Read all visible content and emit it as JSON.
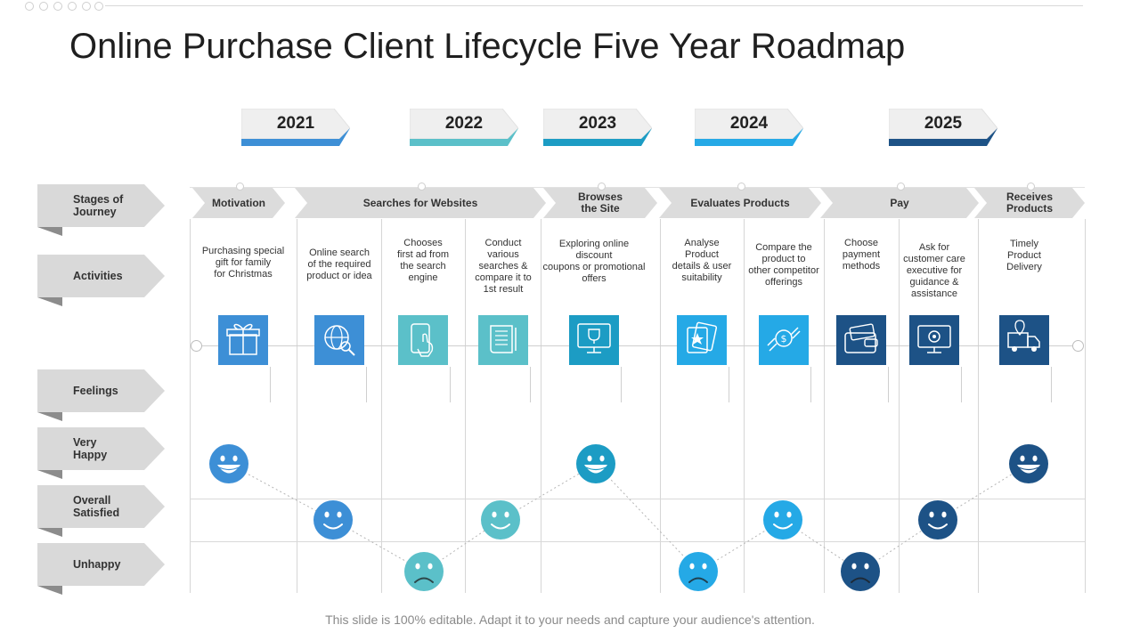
{
  "title": "Online Purchase Client Lifecycle Five Year Roadmap",
  "footer": "This slide is 100% editable. Adapt it to your needs and capture your audience's attention.",
  "years": [
    {
      "label": "2021",
      "color": "#3d8fd6"
    },
    {
      "label": "2022",
      "color": "#5bc0c9"
    },
    {
      "label": "2023",
      "color": "#1c9cc4"
    },
    {
      "label": "2024",
      "color": "#25a9e6"
    },
    {
      "label": "2025",
      "color": "#1d5286"
    }
  ],
  "sidebar": [
    {
      "label": "Stages of\nJourney"
    },
    {
      "label": "Activities"
    },
    {
      "label": "Feelings"
    },
    {
      "label": "Very\nHappy"
    },
    {
      "label": "Overall\nSatisfied"
    },
    {
      "label": "Unhappy"
    }
  ],
  "stages": [
    {
      "label": "Motivation"
    },
    {
      "label": "Searches for Websites"
    },
    {
      "label": "Browses\nthe Site"
    },
    {
      "label": "Evaluates Products"
    },
    {
      "label": "Pay"
    },
    {
      "label": "Receives\nProducts"
    }
  ],
  "activities": [
    {
      "text": "Purchasing special\ngift for family\nfor Christmas",
      "icon": "gift-icon",
      "color": "#3d8fd6",
      "feeling": "very-happy"
    },
    {
      "text": "Online search\nof the required\nproduct or idea",
      "icon": "globe-search-icon",
      "color": "#3d8fd6",
      "feeling": "satisfied"
    },
    {
      "text": "Chooses\nfirst ad from\nthe search\nengine",
      "icon": "phone-tap-icon",
      "color": "#5bc0c9",
      "feeling": "unhappy"
    },
    {
      "text": "Conduct\nvarious\nsearches &\ncompare it to\n1st result",
      "icon": "scroll-icon",
      "color": "#5bc0c9",
      "feeling": "satisfied"
    },
    {
      "text": "Exploring online\ndiscount\ncoupons or promotional\noffers",
      "icon": "trophy-screen-icon",
      "color": "#1c9cc4",
      "feeling": "very-happy"
    },
    {
      "text": "Analyse\nProduct\ndetails & user\nsuitability",
      "icon": "cards-star-icon",
      "color": "#25a9e6",
      "feeling": "unhappy"
    },
    {
      "text": "Compare the\nproduct to\nother competitor\nofferings",
      "icon": "handshake-coin-icon",
      "color": "#25a9e6",
      "feeling": "satisfied"
    },
    {
      "text": "Choose\npayment\nmethods",
      "icon": "wallet-card-icon",
      "color": "#1d5286",
      "feeling": "unhappy"
    },
    {
      "text": "Ask for\ncustomer care\nexecutive for\nguidance &\nassistance",
      "icon": "monitor-gear-icon",
      "color": "#1d5286",
      "feeling": "satisfied"
    },
    {
      "text": "Timely\nProduct\nDelivery",
      "icon": "delivery-truck-icon",
      "color": "#1d5286",
      "feeling": "very-happy"
    }
  ]
}
